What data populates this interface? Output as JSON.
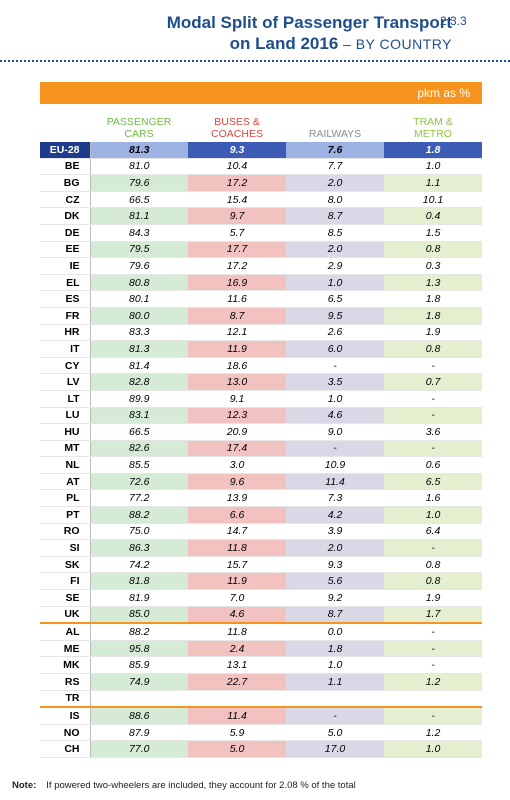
{
  "header": {
    "title_line1": "Modal Split of Passenger Transport",
    "title_line2": "on Land 2016",
    "subtitle": "– BY COUNTRY",
    "section": "2.3.3"
  },
  "table": {
    "unit": "pkm as %",
    "columns": [
      "PASSENGER CARS",
      "BUSES & COACHES",
      "RAILWAYS",
      "TRAM & METRO"
    ],
    "total": [
      "EU-28",
      "81.3",
      "9.3",
      "7.6",
      "1.8"
    ],
    "groups": [
      [
        [
          "BE",
          "81.0",
          "10.4",
          "7.7",
          "1.0"
        ],
        [
          "BG",
          "79.6",
          "17.2",
          "2.0",
          "1.1"
        ],
        [
          "CZ",
          "66.5",
          "15.4",
          "8.0",
          "10.1"
        ],
        [
          "DK",
          "81.1",
          "9.7",
          "8.7",
          "0.4"
        ],
        [
          "DE",
          "84.3",
          "5.7",
          "8.5",
          "1.5"
        ],
        [
          "EE",
          "79.5",
          "17.7",
          "2.0",
          "0.8"
        ],
        [
          "IE",
          "79.6",
          "17.2",
          "2.9",
          "0.3"
        ],
        [
          "EL",
          "80.8",
          "16.9",
          "1.0",
          "1.3"
        ],
        [
          "ES",
          "80.1",
          "11.6",
          "6.5",
          "1.8"
        ],
        [
          "FR",
          "80.0",
          "8.7",
          "9.5",
          "1.8"
        ],
        [
          "HR",
          "83.3",
          "12.1",
          "2.6",
          "1.9"
        ],
        [
          "IT",
          "81.3",
          "11.9",
          "6.0",
          "0.8"
        ],
        [
          "CY",
          "81.4",
          "18.6",
          "-",
          "-"
        ],
        [
          "LV",
          "82.8",
          "13.0",
          "3.5",
          "0.7"
        ],
        [
          "LT",
          "89.9",
          "9.1",
          "1.0",
          "-"
        ],
        [
          "LU",
          "83.1",
          "12.3",
          "4.6",
          "-"
        ],
        [
          "HU",
          "66.5",
          "20.9",
          "9.0",
          "3.6"
        ],
        [
          "MT",
          "82.6",
          "17.4",
          "-",
          "-"
        ],
        [
          "NL",
          "85.5",
          "3.0",
          "10.9",
          "0.6"
        ],
        [
          "AT",
          "72.6",
          "9.6",
          "11.4",
          "6.5"
        ],
        [
          "PL",
          "77.2",
          "13.9",
          "7.3",
          "1.6"
        ],
        [
          "PT",
          "88.2",
          "6.6",
          "4.2",
          "1.0"
        ],
        [
          "RO",
          "75.0",
          "14.7",
          "3.9",
          "6.4"
        ],
        [
          "SI",
          "86.3",
          "11.8",
          "2.0",
          "-"
        ],
        [
          "SK",
          "74.2",
          "15.7",
          "9.3",
          "0.8"
        ],
        [
          "FI",
          "81.8",
          "11.9",
          "5.6",
          "0.8"
        ],
        [
          "SE",
          "81.9",
          "7.0",
          "9.2",
          "1.9"
        ],
        [
          "UK",
          "85.0",
          "4.6",
          "8.7",
          "1.7"
        ]
      ],
      [
        [
          "AL",
          "88.2",
          "11.8",
          "0.0",
          "-"
        ],
        [
          "ME",
          "95.8",
          "2.4",
          "1.8",
          "-"
        ],
        [
          "MK",
          "85.9",
          "13.1",
          "1.0",
          "-"
        ],
        [
          "RS",
          "74.9",
          "22.7",
          "1.1",
          "1.2"
        ],
        [
          "TR"
        ]
      ],
      [
        [
          "IS",
          "88.6",
          "11.4",
          "-",
          "-"
        ],
        [
          "NO",
          "87.9",
          "5.9",
          "5.0",
          "1.2"
        ],
        [
          "CH",
          "77.0",
          "5.0",
          "17.0",
          "1.0"
        ]
      ]
    ]
  },
  "note": {
    "label": "Note:",
    "text": "If powered two-wheelers are included, they account for 2.08 % of the total"
  }
}
